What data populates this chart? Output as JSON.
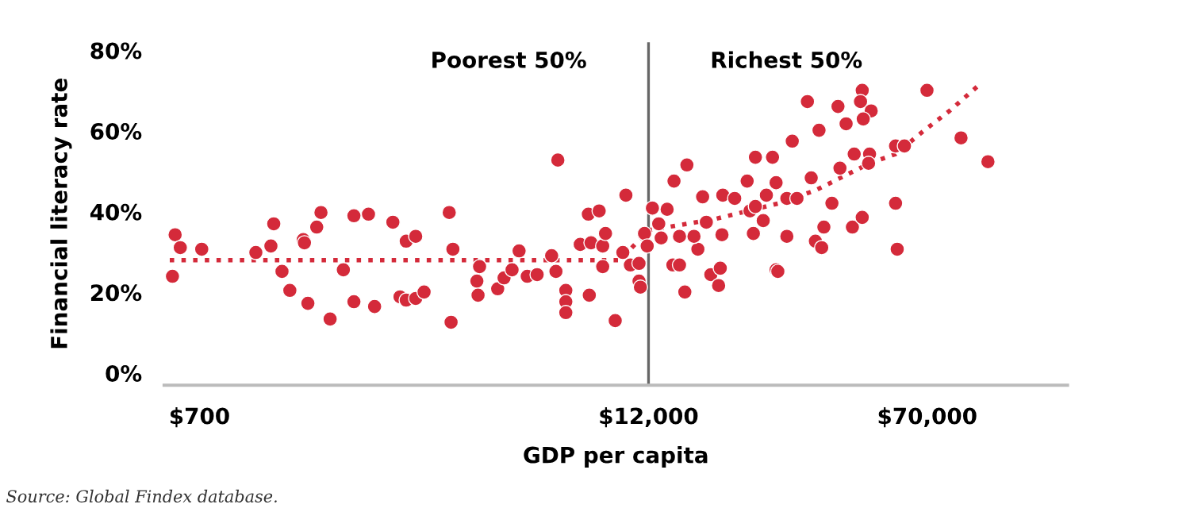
{
  "chart_data": {
    "type": "scatter",
    "xlabel": "GDP per capita",
    "ylabel": "Financial literacy rate",
    "log": "x",
    "xlim": [
      560,
      170000
    ],
    "ylim": [
      -3,
      82
    ],
    "xticks": [
      {
        "value": 700,
        "label": "$700"
      },
      {
        "value": 12000,
        "label": "$12,000"
      },
      {
        "value": 70000,
        "label": "$70,000"
      }
    ],
    "yticks": [
      {
        "value": 0,
        "label": "0%"
      },
      {
        "value": 20,
        "label": "20%"
      },
      {
        "value": 40,
        "label": "40%"
      },
      {
        "value": 60,
        "label": "60%"
      },
      {
        "value": 80,
        "label": "80%"
      }
    ],
    "grid": false,
    "legend": false,
    "marker": "circle",
    "ref_lines": [
      {
        "axis": "x",
        "value": 12000,
        "color": "#666666"
      }
    ],
    "annotations": [
      "Poorest 50%",
      "Richest 50%",
      "Source: Global Findex database."
    ],
    "series": [
      {
        "color": "#d42a3a",
        "x": [
          600,
          620,
          590,
          710,
          1000,
          1100,
          1120,
          1180,
          1240,
          1350,
          1360,
          1470,
          1510,
          1390,
          1600,
          1740,
          1860,
          2040,
          1860,
          2120,
          2380,
          2590,
          2750,
          2490,
          2590,
          2750,
          2900,
          3400,
          3480,
          3440,
          6760,
          4120,
          4050,
          4080,
          4620,
          4810,
          5060,
          5290,
          5570,
          5930,
          6500,
          6680,
          7110,
          7110,
          7110,
          8200,
          8780,
          7790,
          8340,
          8980,
          9140,
          8980,
          8250,
          9720,
          10400,
          10200,
          10700,
          11300,
          11300,
          11400,
          11700,
          11900,
          12300,
          12800,
          13000,
          13500,
          14100,
          15300,
          14600,
          14000,
          14600,
          15100,
          16400,
          16900,
          16000,
          17300,
          17800,
          18700,
          18900,
          19100,
          19200,
          20700,
          22400,
          23600,
          26300,
          22800,
          23600,
          25300,
          24800,
          23300,
          26900,
          46400,
          69900,
          32800,
          39800,
          45900,
          49100,
          46700,
          41900,
          35300,
          29800,
          86700,
          102800,
          26900,
          33600,
          40300,
          44100,
          48600,
          48300,
          57300,
          60600,
          28800,
          30700,
          38300,
          57300,
          28800,
          36400,
          43600,
          46400,
          34500,
          35900,
          57900,
          27200
        ],
        "values": [
          34.3,
          31.1,
          24.0,
          30.7,
          29.9,
          31.5,
          37.0,
          25.2,
          20.5,
          33.1,
          32.3,
          36.2,
          39.8,
          17.3,
          13.4,
          25.6,
          39.0,
          39.4,
          17.7,
          16.5,
          37.4,
          32.7,
          33.9,
          18.9,
          18.1,
          18.5,
          20.1,
          39.8,
          30.7,
          12.6,
          52.8,
          26.4,
          22.8,
          19.3,
          20.9,
          23.6,
          25.6,
          30.3,
          24.0,
          24.4,
          29.1,
          25.2,
          20.5,
          17.7,
          15.0,
          39.4,
          40.2,
          31.9,
          32.3,
          31.5,
          34.6,
          26.4,
          19.3,
          13.0,
          44.1,
          29.9,
          26.8,
          27.2,
          22.8,
          21.3,
          34.6,
          31.5,
          40.9,
          37.0,
          33.5,
          40.6,
          47.6,
          51.6,
          33.9,
          26.8,
          26.8,
          20.1,
          30.7,
          43.7,
          33.9,
          37.4,
          24.4,
          21.7,
          26.0,
          34.3,
          44.1,
          43.3,
          47.6,
          53.5,
          53.5,
          40.2,
          41.3,
          44.1,
          37.8,
          34.6,
          25.6,
          70.1,
          70.1,
          67.3,
          66.1,
          67.3,
          65.0,
          63.0,
          61.8,
          60.2,
          57.5,
          58.3,
          52.4,
          47.2,
          48.4,
          50.8,
          54.3,
          54.3,
          52.0,
          56.3,
          56.3,
          43.3,
          43.3,
          42.1,
          42.1,
          33.9,
          36.2,
          36.2,
          38.6,
          32.7,
          31.1,
          30.7,
          25.2
        ]
      },
      {
        "type": "line",
        "color": "#d42a3a",
        "line_style": "dotted",
        "marker": "none",
        "x": [
          580,
          10000,
          12000,
          18300,
          27400,
          34500,
          48600,
          57300,
          67900,
          80600,
          98800
        ],
        "values": [
          28.0,
          28.0,
          35.4,
          38.2,
          42.1,
          45.3,
          52.0,
          54.3,
          59.8,
          65.0,
          72.0
        ]
      }
    ]
  }
}
